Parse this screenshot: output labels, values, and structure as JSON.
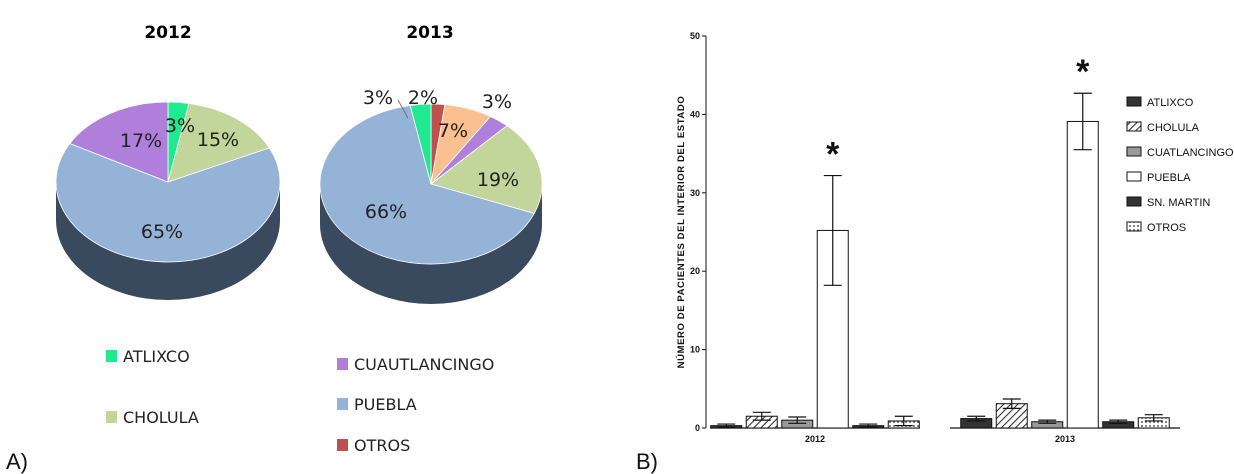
{
  "panels": {
    "a_label": "A)",
    "b_label": "B)"
  },
  "colors": {
    "ATLIXCO": "#1FEA90",
    "CHOLULA": "#C2D69B",
    "CUAUTLANCINGO": "#B07FDB",
    "PUEBLA": "#95B3D7",
    "OTROS": "#C0504D",
    "OTROS_2013_slice": "#FAC090",
    "side_dark": "#3A4A5E"
  },
  "pie_legend": [
    {
      "key": "ATLIXCO",
      "label": "ATLIXCO"
    },
    {
      "key": "CHOLULA",
      "label": "CHOLULA"
    },
    {
      "key": "CUAUTLANCINGO",
      "label": "CUAUTLANCINGO"
    },
    {
      "key": "PUEBLA",
      "label": "PUEBLA"
    },
    {
      "key": "OTROS",
      "label": "OTROS"
    }
  ],
  "chart_data": [
    {
      "type": "pie",
      "title": "2012",
      "slices": [
        {
          "name": "ATLIXCO",
          "value": 3,
          "label": "3%"
        },
        {
          "name": "CHOLULA",
          "value": 15,
          "label": "15%"
        },
        {
          "name": "PUEBLA",
          "value": 65,
          "label": "65%"
        },
        {
          "name": "CUAUTLANCINGO",
          "value": 17,
          "label": "17%"
        }
      ]
    },
    {
      "type": "pie",
      "title": "2013",
      "slices": [
        {
          "name": "OTROS",
          "value": 2,
          "label": "2%"
        },
        {
          "name": "OTROS_2013_slice",
          "value": 7,
          "label": "7%"
        },
        {
          "name": "CUAUTLANCINGO",
          "value": 3,
          "label": "3%"
        },
        {
          "name": "CHOLULA",
          "value": 19,
          "label": "19%"
        },
        {
          "name": "PUEBLA",
          "value": 66,
          "label": "66%"
        },
        {
          "name": "ATLIXCO",
          "value": 3,
          "label": "3%"
        }
      ]
    },
    {
      "type": "bar",
      "categories": [
        "2012",
        "2013"
      ],
      "ylabel": "NÚMERO DE PACIENTES DEL INTERIOR DEL ESTADO",
      "ylim": [
        0,
        50
      ],
      "yticks": [
        "0",
        "10",
        "20",
        "30",
        "40",
        "50"
      ],
      "legend_position": "right",
      "significance_marker": "*",
      "series": [
        {
          "name": "ATLIXCO",
          "style": "solid-dark",
          "values": [
            0.3,
            1.2
          ],
          "errors": [
            0.2,
            0.3
          ]
        },
        {
          "name": "CHOLULA",
          "style": "hatched",
          "values": [
            1.5,
            3.1
          ],
          "errors": [
            0.5,
            0.6
          ]
        },
        {
          "name": "CUATLANCINGO",
          "style": "grey",
          "values": [
            1.0,
            0.8
          ],
          "errors": [
            0.4,
            0.2
          ]
        },
        {
          "name": "PUEBLA",
          "style": "white",
          "values": [
            25.2,
            39.1
          ],
          "errors": [
            7.0,
            3.6
          ],
          "significant": [
            true,
            true
          ]
        },
        {
          "name": "SN. MARTIN",
          "style": "solid-dark",
          "values": [
            0.3,
            0.8
          ],
          "errors": [
            0.2,
            0.2
          ]
        },
        {
          "name": "OTROS",
          "style": "dotted",
          "values": [
            0.9,
            1.3
          ],
          "errors": [
            0.6,
            0.4
          ]
        }
      ]
    }
  ]
}
